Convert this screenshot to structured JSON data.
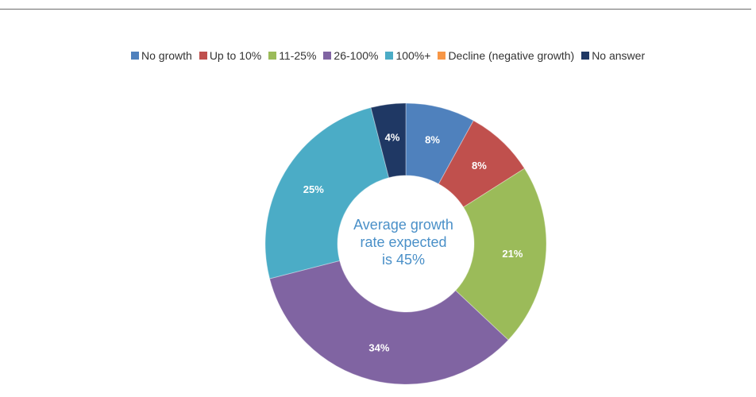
{
  "chart_data": {
    "type": "pie",
    "variant": "donut",
    "title": "",
    "legend_position": "top",
    "center_text": {
      "line1": "Average growth",
      "line2": "rate expected",
      "line3": "is 45%"
    },
    "slices": [
      {
        "name": "No growth",
        "value": 8,
        "label": "8%",
        "color": "#4f81bd"
      },
      {
        "name": "Up to 10%",
        "value": 8,
        "label": "8%",
        "color": "#c0504d"
      },
      {
        "name": "11-25%",
        "value": 21,
        "label": "21%",
        "color": "#9bbb59"
      },
      {
        "name": "26-100%",
        "value": 34,
        "label": "34%",
        "color": "#8064a2"
      },
      {
        "name": "100%+",
        "value": 25,
        "label": "25%",
        "color": "#4bacc6"
      },
      {
        "name": "Decline (negative growth)",
        "value": 0,
        "label": "",
        "color": "#f79646"
      },
      {
        "name": "No answer",
        "value": 4,
        "label": "4%",
        "color": "#1f3864"
      }
    ]
  }
}
